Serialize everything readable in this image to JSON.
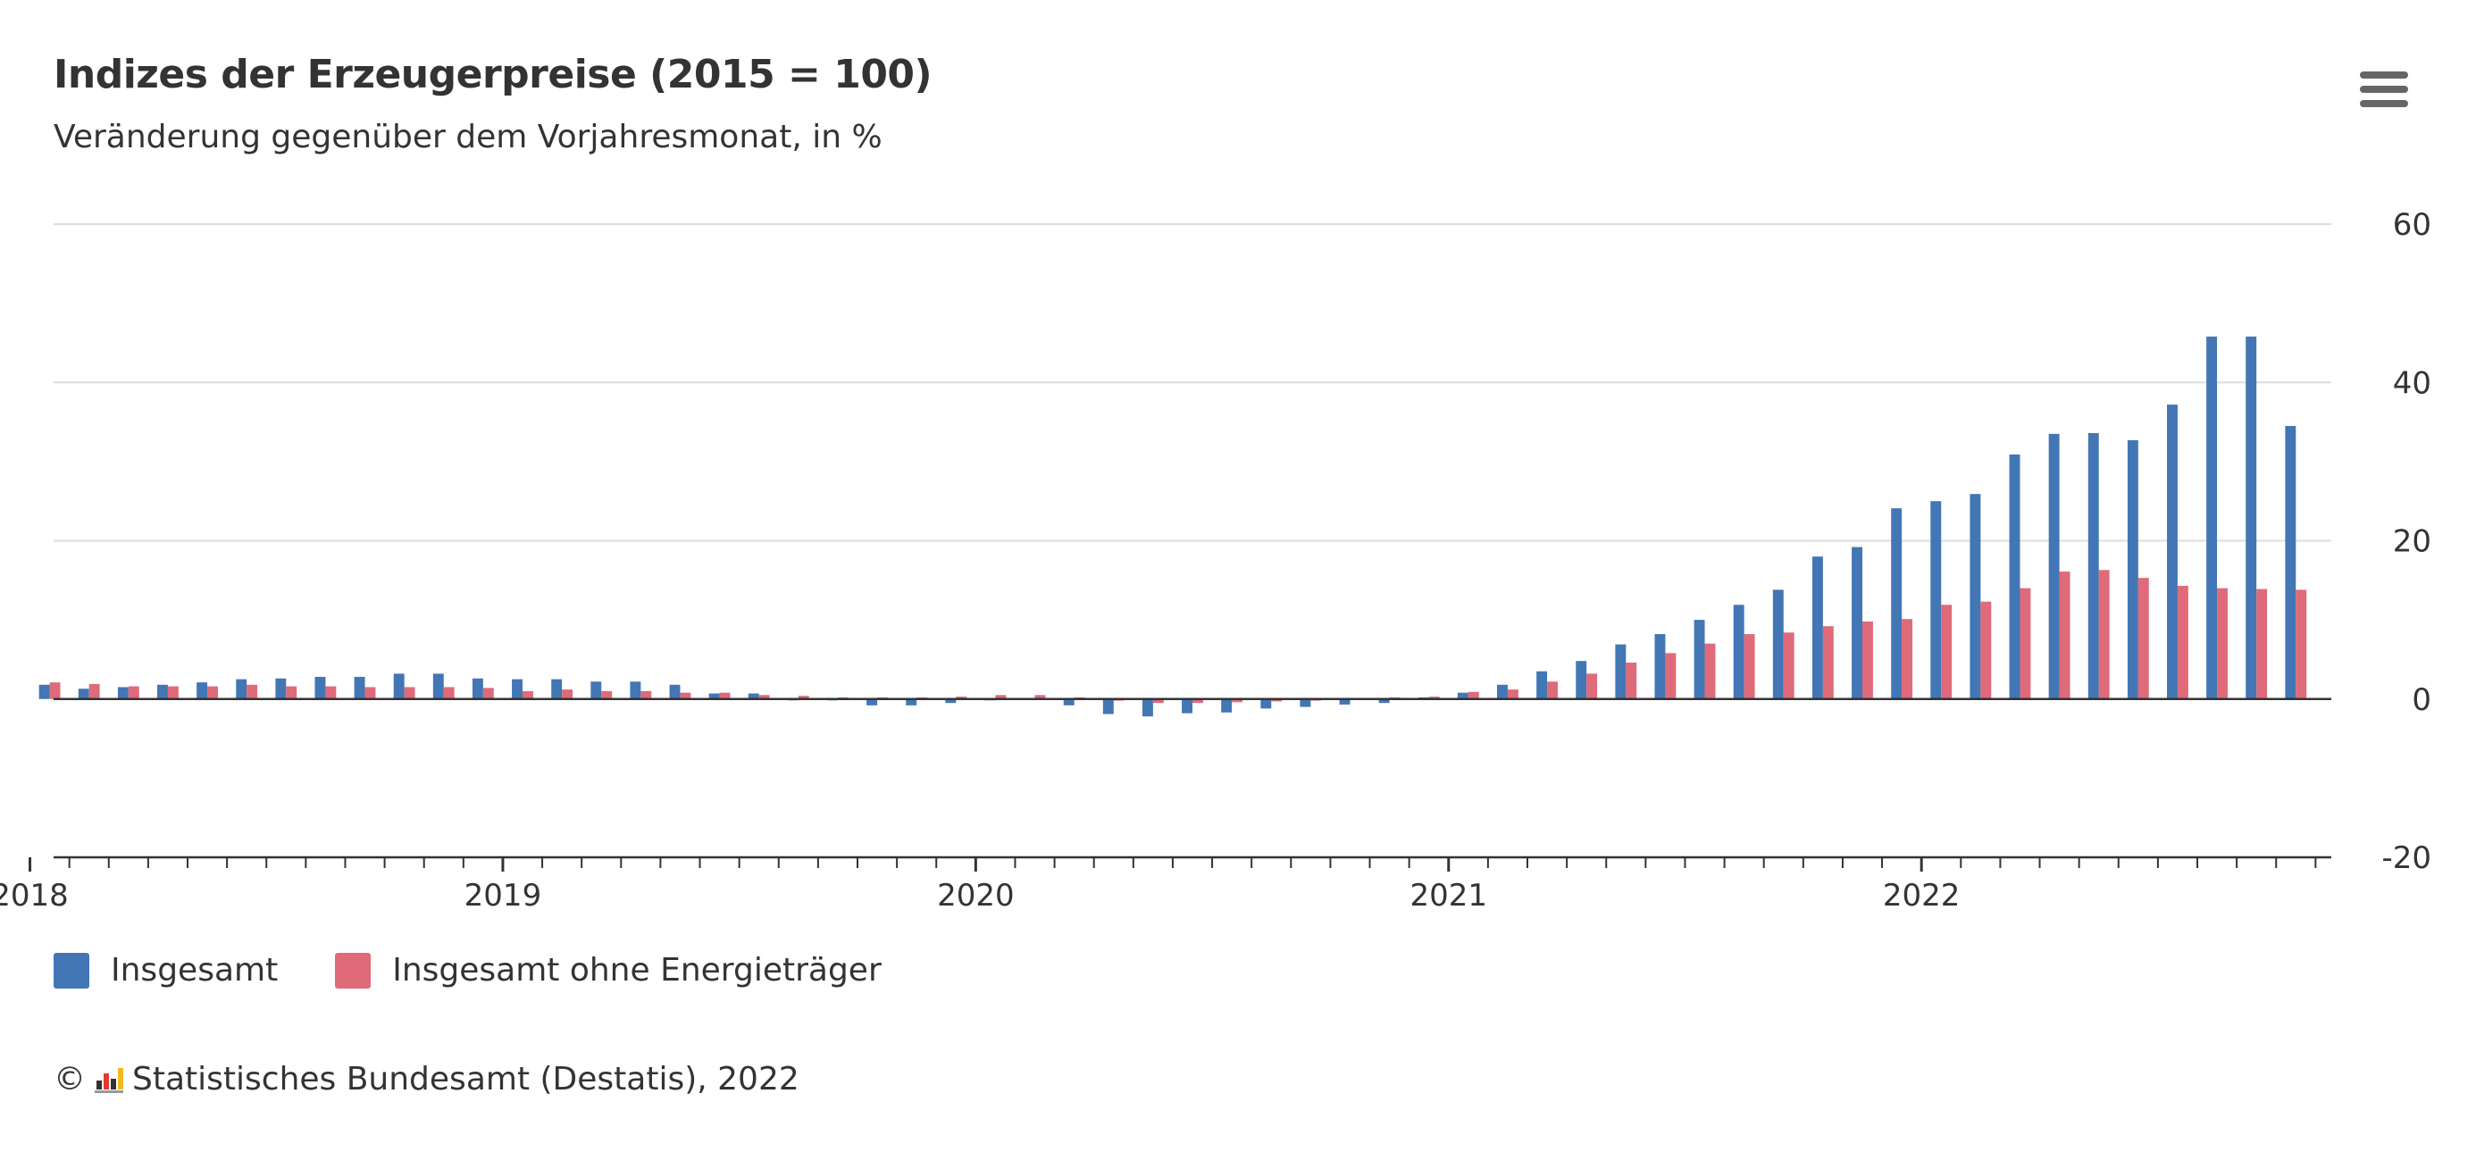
{
  "title": "Indizes der Erzeugerpreise (2015 = 100)",
  "subtitle": "Veränderung gegenüber dem Vorjahresmonat, in %",
  "menu_icon": "hamburger-menu-icon",
  "credit": {
    "copyright": "©",
    "logo_icon": "destatis-logo-icon",
    "text": "Statistisches Bundesamt (Destatis), 2022"
  },
  "chart_data": {
    "type": "bar",
    "title": "Indizes der Erzeugerpreise (2015 = 100)",
    "subtitle": "Veränderung gegenüber dem Vorjahresmonat, in %",
    "xlabel": "",
    "ylabel": "",
    "ylim": [
      -20,
      60
    ],
    "y_ticks": [
      60,
      40,
      20,
      0,
      -20
    ],
    "y_axis_position": "right",
    "grid": true,
    "legend_position": "bottom-left",
    "x_tick_labels": [
      "2018",
      "2019",
      "2020",
      "2021",
      "2022"
    ],
    "categories": [
      "2018-01",
      "2018-02",
      "2018-03",
      "2018-04",
      "2018-05",
      "2018-06",
      "2018-07",
      "2018-08",
      "2018-09",
      "2018-10",
      "2018-11",
      "2018-12",
      "2019-01",
      "2019-02",
      "2019-03",
      "2019-04",
      "2019-05",
      "2019-06",
      "2019-07",
      "2019-08",
      "2019-09",
      "2019-10",
      "2019-11",
      "2019-12",
      "2020-01",
      "2020-02",
      "2020-03",
      "2020-04",
      "2020-05",
      "2020-06",
      "2020-07",
      "2020-08",
      "2020-09",
      "2020-10",
      "2020-11",
      "2020-12",
      "2021-01",
      "2021-02",
      "2021-03",
      "2021-04",
      "2021-05",
      "2021-06",
      "2021-07",
      "2021-08",
      "2021-09",
      "2021-10",
      "2021-11",
      "2021-12",
      "2022-01",
      "2022-02",
      "2022-03",
      "2022-04",
      "2022-05",
      "2022-06",
      "2022-07",
      "2022-08",
      "2022-09",
      "2022-10"
    ],
    "series": [
      {
        "name": "Insgesamt",
        "color": "#4276b5",
        "values": [
          1.8,
          1.3,
          1.5,
          1.8,
          2.1,
          2.5,
          2.6,
          2.8,
          2.8,
          3.2,
          3.2,
          2.6,
          2.5,
          2.5,
          2.2,
          2.2,
          1.8,
          0.7,
          0.7,
          -0.1,
          -0.1,
          -0.8,
          -0.8,
          -0.5,
          -0.1,
          0.1,
          -0.8,
          -1.9,
          -2.2,
          -1.8,
          -1.7,
          -1.2,
          -1.0,
          -0.7,
          -0.5,
          0.2,
          0.8,
          1.8,
          3.5,
          4.8,
          6.9,
          8.2,
          10.0,
          11.9,
          13.8,
          18.0,
          19.2,
          24.1,
          25.0,
          25.9,
          30.9,
          33.5,
          33.6,
          32.7,
          37.2,
          45.8,
          45.8,
          34.5
        ]
      },
      {
        "name": "Insgesamt ohne Energieträger",
        "color": "#df6a7a",
        "values": [
          2.1,
          1.9,
          1.6,
          1.6,
          1.6,
          1.8,
          1.6,
          1.6,
          1.5,
          1.5,
          1.5,
          1.4,
          1.0,
          1.2,
          1.0,
          1.0,
          0.8,
          0.8,
          0.5,
          0.4,
          0.2,
          0.2,
          0.2,
          0.3,
          0.5,
          0.5,
          0.2,
          -0.2,
          -0.5,
          -0.5,
          -0.4,
          -0.3,
          -0.2,
          0.1,
          0.2,
          0.3,
          0.9,
          1.2,
          2.2,
          3.2,
          4.6,
          5.8,
          7.0,
          8.2,
          8.4,
          9.2,
          9.8,
          10.1,
          11.9,
          12.3,
          14.0,
          16.1,
          16.3,
          15.3,
          14.3,
          14.0,
          13.9,
          13.8
        ]
      }
    ]
  }
}
